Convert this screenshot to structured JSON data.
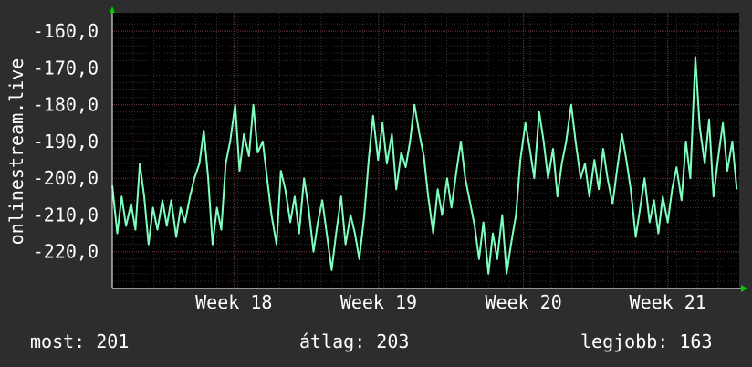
{
  "chart_data": {
    "type": "line",
    "ylabel": "onlinestream.live",
    "yticks": [
      -160,
      -170,
      -180,
      -190,
      -200,
      -210,
      -220
    ],
    "ytick_labels": [
      "-160,0",
      "-170,0",
      "-180,0",
      "-190,0",
      "-200,0",
      "-210,0",
      "-220,0"
    ],
    "ylim": [
      -230,
      -155
    ],
    "xlim": [
      0,
      100
    ],
    "xticks": [
      {
        "label": "Week 18",
        "x": 19.4
      },
      {
        "label": "Week 19",
        "x": 42.5
      },
      {
        "label": "Week 20",
        "x": 65.6
      },
      {
        "label": "Week 21",
        "x": 88.6
      }
    ],
    "grid": true,
    "colors": {
      "background": "#2d2d2d",
      "plot": "#000000",
      "line": "#7fffbf",
      "grid_major": "#6a3a3a",
      "grid_minor": "#333333",
      "axis_arrow": "#00cc00"
    },
    "series": [
      {
        "values": [
          [
            0.0,
            -202
          ],
          [
            0.8,
            -215
          ],
          [
            1.5,
            -205
          ],
          [
            2.2,
            -213
          ],
          [
            3.0,
            -207
          ],
          [
            3.7,
            -214
          ],
          [
            4.4,
            -196
          ],
          [
            5.1,
            -205
          ],
          [
            5.8,
            -218
          ],
          [
            6.5,
            -208
          ],
          [
            7.2,
            -214
          ],
          [
            8.0,
            -206
          ],
          [
            8.7,
            -213
          ],
          [
            9.4,
            -206
          ],
          [
            10.2,
            -216
          ],
          [
            10.9,
            -208
          ],
          [
            11.6,
            -212
          ],
          [
            12.4,
            -205
          ],
          [
            13.1,
            -200
          ],
          [
            13.9,
            -196
          ],
          [
            14.6,
            -187
          ],
          [
            15.3,
            -200
          ],
          [
            16.0,
            -218
          ],
          [
            16.7,
            -208
          ],
          [
            17.4,
            -214
          ],
          [
            18.1,
            -196
          ],
          [
            18.8,
            -190
          ],
          [
            19.6,
            -180
          ],
          [
            20.3,
            -198
          ],
          [
            21.0,
            -188
          ],
          [
            21.8,
            -194
          ],
          [
            22.5,
            -180
          ],
          [
            23.2,
            -193
          ],
          [
            24.0,
            -190
          ],
          [
            24.7,
            -200
          ],
          [
            25.4,
            -210
          ],
          [
            26.2,
            -218
          ],
          [
            26.9,
            -198
          ],
          [
            27.6,
            -203
          ],
          [
            28.4,
            -212
          ],
          [
            29.1,
            -205
          ],
          [
            29.8,
            -215
          ],
          [
            30.6,
            -200
          ],
          [
            31.3,
            -208
          ],
          [
            32.1,
            -220
          ],
          [
            32.8,
            -212
          ],
          [
            33.5,
            -206
          ],
          [
            34.2,
            -215
          ],
          [
            35.0,
            -225
          ],
          [
            35.7,
            -215
          ],
          [
            36.5,
            -205
          ],
          [
            37.2,
            -218
          ],
          [
            38.0,
            -210
          ],
          [
            38.7,
            -215
          ],
          [
            39.4,
            -222
          ],
          [
            40.2,
            -210
          ],
          [
            40.9,
            -195
          ],
          [
            41.6,
            -183
          ],
          [
            42.4,
            -195
          ],
          [
            43.1,
            -185
          ],
          [
            43.8,
            -196
          ],
          [
            44.6,
            -188
          ],
          [
            45.3,
            -203
          ],
          [
            46.1,
            -193
          ],
          [
            46.8,
            -197
          ],
          [
            47.5,
            -190
          ],
          [
            48.2,
            -180
          ],
          [
            49.0,
            -188
          ],
          [
            49.7,
            -194
          ],
          [
            50.4,
            -205
          ],
          [
            51.2,
            -215
          ],
          [
            51.9,
            -203
          ],
          [
            52.6,
            -210
          ],
          [
            53.4,
            -200
          ],
          [
            54.1,
            -208
          ],
          [
            54.9,
            -198
          ],
          [
            55.6,
            -190
          ],
          [
            56.3,
            -200
          ],
          [
            57.0,
            -206
          ],
          [
            57.8,
            -213
          ],
          [
            58.5,
            -222
          ],
          [
            59.2,
            -212
          ],
          [
            60.0,
            -226
          ],
          [
            60.7,
            -215
          ],
          [
            61.4,
            -222
          ],
          [
            62.2,
            -210
          ],
          [
            62.9,
            -226
          ],
          [
            63.6,
            -218
          ],
          [
            64.4,
            -210
          ],
          [
            65.1,
            -195
          ],
          [
            65.9,
            -185
          ],
          [
            66.6,
            -192
          ],
          [
            67.3,
            -200
          ],
          [
            68.1,
            -182
          ],
          [
            68.8,
            -190
          ],
          [
            69.5,
            -200
          ],
          [
            70.3,
            -192
          ],
          [
            71.0,
            -205
          ],
          [
            71.7,
            -196
          ],
          [
            72.4,
            -190
          ],
          [
            73.2,
            -180
          ],
          [
            73.9,
            -190
          ],
          [
            74.7,
            -200
          ],
          [
            75.4,
            -196
          ],
          [
            76.1,
            -205
          ],
          [
            76.9,
            -195
          ],
          [
            77.6,
            -203
          ],
          [
            78.3,
            -192
          ],
          [
            79.0,
            -200
          ],
          [
            79.8,
            -207
          ],
          [
            80.5,
            -198
          ],
          [
            81.3,
            -188
          ],
          [
            82.0,
            -195
          ],
          [
            82.7,
            -203
          ],
          [
            83.5,
            -216
          ],
          [
            84.2,
            -208
          ],
          [
            84.9,
            -200
          ],
          [
            85.7,
            -212
          ],
          [
            86.4,
            -206
          ],
          [
            87.1,
            -215
          ],
          [
            87.8,
            -205
          ],
          [
            88.6,
            -212
          ],
          [
            89.3,
            -203
          ],
          [
            90.0,
            -197
          ],
          [
            90.8,
            -206
          ],
          [
            91.5,
            -190
          ],
          [
            92.2,
            -200
          ],
          [
            93.0,
            -167
          ],
          [
            93.7,
            -186
          ],
          [
            94.5,
            -196
          ],
          [
            95.2,
            -184
          ],
          [
            95.9,
            -205
          ],
          [
            96.6,
            -195
          ],
          [
            97.4,
            -185
          ],
          [
            98.1,
            -198
          ],
          [
            98.9,
            -190
          ],
          [
            99.6,
            -203
          ]
        ]
      }
    ]
  },
  "stats": {
    "current": "most: 201",
    "average": "átlag: 203",
    "best": "legjobb: 163"
  }
}
